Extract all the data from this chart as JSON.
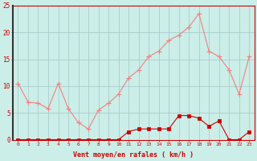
{
  "x": [
    0,
    1,
    2,
    3,
    4,
    5,
    6,
    7,
    8,
    9,
    10,
    11,
    12,
    13,
    14,
    15,
    16,
    17,
    18,
    19,
    20,
    21,
    22,
    23
  ],
  "gusts": [
    10.5,
    7.0,
    6.8,
    5.8,
    10.5,
    5.8,
    3.2,
    2.0,
    5.5,
    6.8,
    8.5,
    11.5,
    13.0,
    15.5,
    16.5,
    18.5,
    19.5,
    21.0,
    23.5,
    16.5,
    15.5,
    13.0,
    8.5,
    15.5
  ],
  "avg": [
    0.0,
    0.0,
    0.0,
    0.0,
    0.0,
    0.0,
    0.0,
    0.0,
    0.0,
    0.0,
    0.0,
    1.5,
    2.0,
    2.0,
    2.0,
    2.0,
    4.5,
    4.5,
    4.0,
    2.5,
    3.5,
    0.0,
    0.0,
    1.5
  ],
  "gust_color": "#f08080",
  "avg_color": "#cc0000",
  "bg_color": "#cceee8",
  "grid_color": "#aacccc",
  "xlabel": "Vent moyen/en rafales ( km/h )",
  "ylim": [
    0,
    25
  ],
  "yticks": [
    0,
    5,
    10,
    15,
    20,
    25
  ]
}
